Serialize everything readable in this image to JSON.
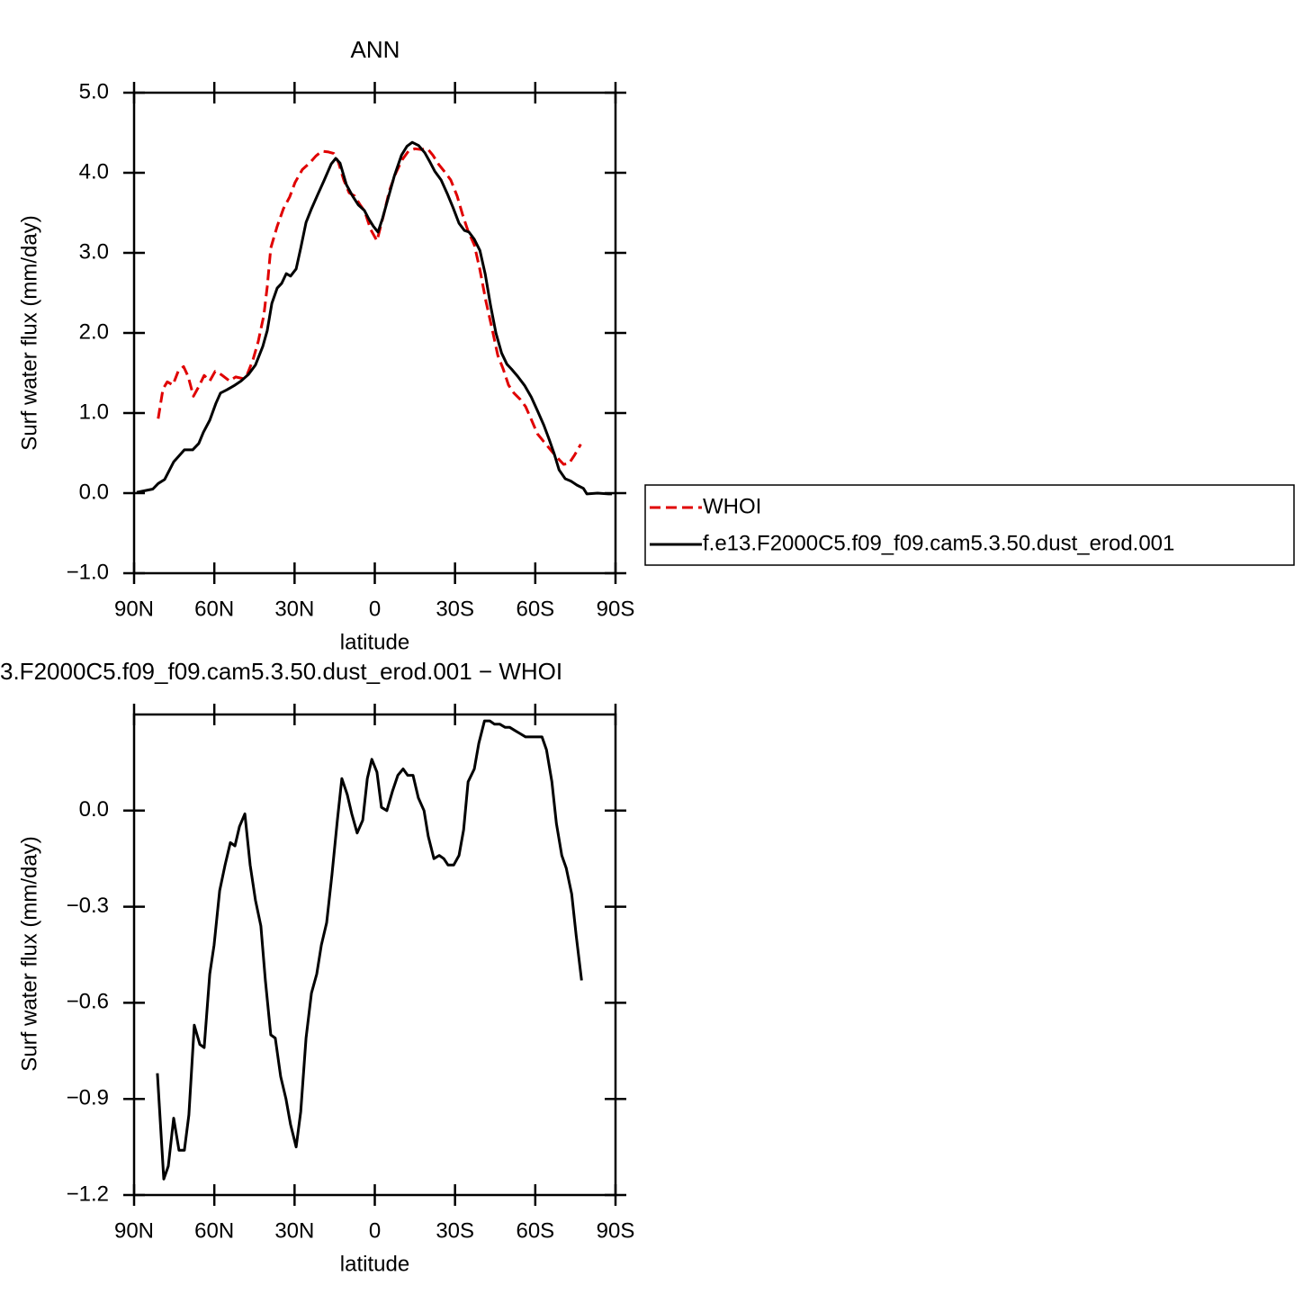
{
  "chart_data": [
    {
      "type": "line",
      "title": "ANN",
      "xlabel": "latitude",
      "ylabel": "Surf water flux (mm/day)",
      "xlim": [
        90,
        -90
      ],
      "xticks": [
        {
          "value": 90,
          "label": "90N"
        },
        {
          "value": 60,
          "label": "60N"
        },
        {
          "value": 30,
          "label": "30N"
        },
        0,
        {
          "value": -30,
          "label": "30S"
        },
        {
          "value": -60,
          "label": "60S"
        },
        {
          "value": -90,
          "label": "90S"
        }
      ],
      "ylim": [
        -1,
        5
      ],
      "yticks": [
        {
          "value": -1,
          "label": "−1.0"
        },
        {
          "value": 0,
          "label": "0.0"
        },
        {
          "value": 1,
          "label": "1.0"
        },
        {
          "value": 2,
          "label": "2.0"
        },
        {
          "value": 3,
          "label": "3.0"
        },
        {
          "value": 4,
          "label": "4.0"
        },
        {
          "value": 5,
          "label": "5.0"
        }
      ],
      "legend": "right",
      "series": [
        {
          "name": "WHOI",
          "color": "#e00000",
          "linestyle": "dashed",
          "x": [
            81,
            79.2,
            77.6,
            75.5,
            73.5,
            71.5,
            69.8,
            67.8,
            65.8,
            63.8,
            61.7,
            59.7,
            57.4,
            54.3,
            52,
            49.3,
            47.6,
            45.6,
            43.6,
            41.5,
            40.2,
            38.9,
            36.5,
            34.2,
            31.8,
            29.8,
            27.1,
            24.1,
            22,
            19.7,
            17.3,
            15.3,
            13.6,
            11.6,
            9.6,
            7.5,
            5.5,
            3.8,
            1.5,
            -0.8,
            -3.2,
            -5.5,
            -7.9,
            -10.2,
            -12.6,
            -15,
            -17.3,
            -19.7,
            -21.7,
            -24,
            -26.4,
            -28.4,
            -30.8,
            -32.8,
            -34.8,
            -37.2,
            -39.3,
            -41.6,
            -43.6,
            -46,
            -48,
            -50,
            -52,
            -54.4,
            -56.4,
            -58.5,
            -60.8,
            -63.5,
            -66.2,
            -68.6,
            -70.6,
            -72.6,
            -74.6,
            -77
          ],
          "values": [
            0.93,
            1.3,
            1.39,
            1.35,
            1.52,
            1.58,
            1.46,
            1.21,
            1.33,
            1.47,
            1.4,
            1.52,
            1.48,
            1.4,
            1.45,
            1.43,
            1.49,
            1.66,
            1.89,
            2.22,
            2.58,
            3.06,
            3.33,
            3.55,
            3.7,
            3.88,
            4.04,
            4.13,
            4.21,
            4.27,
            4.26,
            4.24,
            4.13,
            3.91,
            3.75,
            3.71,
            3.6,
            3.52,
            3.29,
            3.15,
            3.46,
            3.78,
            4.0,
            4.16,
            4.27,
            4.3,
            4.29,
            4.3,
            4.22,
            4.1,
            4.0,
            3.91,
            3.71,
            3.48,
            3.28,
            3.1,
            2.79,
            2.39,
            2.09,
            1.72,
            1.55,
            1.35,
            1.25,
            1.17,
            1.08,
            0.92,
            0.74,
            0.63,
            0.52,
            0.43,
            0.36,
            0.37,
            0.47,
            0.61
          ]
        },
        {
          "name": "f.e13.F2000C5.f09_f09.cam5.3.50.dust_erod.001",
          "color": "#000000",
          "linestyle": "solid",
          "x": [
            89,
            83,
            81,
            78.6,
            75.2,
            71.2,
            68.1,
            65.8,
            64.1,
            61.7,
            59.4,
            57.7,
            55.3,
            52.7,
            50,
            47.3,
            44.6,
            41.9,
            40.2,
            38.5,
            36.5,
            34.8,
            33.1,
            31.5,
            29.4,
            27.7,
            25.7,
            23.7,
            21.7,
            19,
            16.3,
            14.6,
            13,
            10.6,
            8.3,
            6.2,
            3.9,
            2.2,
            0.5,
            -1.2,
            -2.9,
            -5.2,
            -7.3,
            -10,
            -12,
            -14,
            -16.4,
            -18.7,
            -20.7,
            -22.4,
            -24.8,
            -27.1,
            -29.2,
            -31.5,
            -33.5,
            -35.2,
            -37.2,
            -39.3,
            -41.3,
            -43.3,
            -45.3,
            -47.4,
            -49.4,
            -51.1,
            -53.4,
            -56.1,
            -58.5,
            -60.8,
            -63.2,
            -65.2,
            -67.2,
            -68.9,
            -71.2,
            -73.3,
            -75.6,
            -78,
            -79.3,
            -83.3,
            -87.4,
            -88.7
          ],
          "values": [
            0.01,
            0.05,
            0.12,
            0.17,
            0.39,
            0.54,
            0.54,
            0.62,
            0.76,
            0.91,
            1.12,
            1.25,
            1.29,
            1.34,
            1.4,
            1.48,
            1.6,
            1.83,
            2.03,
            2.37,
            2.56,
            2.62,
            2.74,
            2.71,
            2.8,
            3.06,
            3.38,
            3.55,
            3.7,
            3.9,
            4.11,
            4.18,
            4.12,
            3.85,
            3.71,
            3.6,
            3.53,
            3.42,
            3.33,
            3.26,
            3.43,
            3.71,
            3.96,
            4.22,
            4.33,
            4.38,
            4.34,
            4.25,
            4.13,
            4.02,
            3.91,
            3.74,
            3.57,
            3.37,
            3.28,
            3.26,
            3.17,
            3.03,
            2.73,
            2.34,
            2.0,
            1.75,
            1.61,
            1.55,
            1.46,
            1.34,
            1.2,
            1.03,
            0.85,
            0.67,
            0.48,
            0.29,
            0.18,
            0.15,
            0.1,
            0.06,
            -0.01,
            0.0,
            -0.01,
            -0.01
          ]
        }
      ]
    },
    {
      "type": "line",
      "title": "3.F2000C5.f09_f09.cam5.3.50.dust_erod.001 − WHOI",
      "xlabel": "latitude",
      "ylabel": "Surf water flux (mm/day)",
      "xlim": [
        90,
        -90
      ],
      "xticks": [
        {
          "value": 90,
          "label": "90N"
        },
        {
          "value": 60,
          "label": "60N"
        },
        {
          "value": 30,
          "label": "30N"
        },
        0,
        {
          "value": -30,
          "label": "30S"
        },
        {
          "value": -60,
          "label": "60S"
        },
        {
          "value": -90,
          "label": "90S"
        }
      ],
      "ylim": [
        -1.2,
        0.3
      ],
      "yticks": [
        {
          "value": -1.2,
          "label": "−1.2"
        },
        {
          "value": -0.9,
          "label": "−0.9"
        },
        {
          "value": -0.6,
          "label": "−0.6"
        },
        {
          "value": -0.3,
          "label": "−0.3"
        },
        {
          "value": 0,
          "label": "0.0"
        }
      ],
      "series": [
        {
          "color": "#000000",
          "linestyle": "solid",
          "x": [
            81.3,
            78.9,
            77.2,
            75.2,
            73.2,
            71.2,
            69.5,
            67.5,
            65.4,
            63.8,
            61.7,
            60.1,
            58,
            56,
            54,
            52.3,
            50.6,
            48.6,
            46.6,
            44.6,
            42.6,
            40.9,
            38.9,
            37.2,
            35.2,
            33.2,
            31.5,
            29.4,
            27.7,
            25.7,
            23.7,
            21.7,
            20,
            18,
            16,
            14,
            12.3,
            10.3,
            8.6,
            6.6,
            4.5,
            2.8,
            1.1,
            -0.8,
            -2.5,
            -4.5,
            -6.6,
            -8.6,
            -10.6,
            -12.3,
            -14.3,
            -16.3,
            -18.4,
            -20,
            -22.1,
            -24.1,
            -25.8,
            -27.4,
            -29.5,
            -31.5,
            -33.2,
            -34.9,
            -37.2,
            -38.9,
            -41,
            -43,
            -44.7,
            -46.7,
            -48.7,
            -50.4,
            -52.4,
            -54.4,
            -56.4,
            -58.5,
            -60.8,
            -62.5,
            -64.2,
            -66.2,
            -67.9,
            -69.9,
            -71.6,
            -73.6,
            -75.3,
            -77.3
          ],
          "values": [
            -0.82,
            -1.15,
            -1.11,
            -0.96,
            -1.06,
            -1.06,
            -0.95,
            -0.67,
            -0.73,
            -0.74,
            -0.51,
            -0.42,
            -0.25,
            -0.17,
            -0.1,
            -0.11,
            -0.05,
            -0.01,
            -0.17,
            -0.28,
            -0.36,
            -0.53,
            -0.7,
            -0.71,
            -0.83,
            -0.9,
            -0.98,
            -1.05,
            -0.94,
            -0.71,
            -0.57,
            -0.51,
            -0.42,
            -0.35,
            -0.2,
            -0.03,
            0.1,
            0.05,
            -0.01,
            -0.07,
            -0.03,
            0.1,
            0.16,
            0.12,
            0.01,
            0.0,
            0.06,
            0.11,
            0.13,
            0.11,
            0.11,
            0.04,
            0.0,
            -0.08,
            -0.15,
            -0.14,
            -0.15,
            -0.17,
            -0.17,
            -0.14,
            -0.06,
            0.09,
            0.13,
            0.21,
            0.28,
            0.28,
            0.27,
            0.27,
            0.26,
            0.26,
            0.25,
            0.24,
            0.23,
            0.23,
            0.23,
            0.23,
            0.19,
            0.09,
            -0.04,
            -0.14,
            -0.18,
            -0.26,
            -0.39,
            -0.53
          ]
        }
      ]
    }
  ]
}
